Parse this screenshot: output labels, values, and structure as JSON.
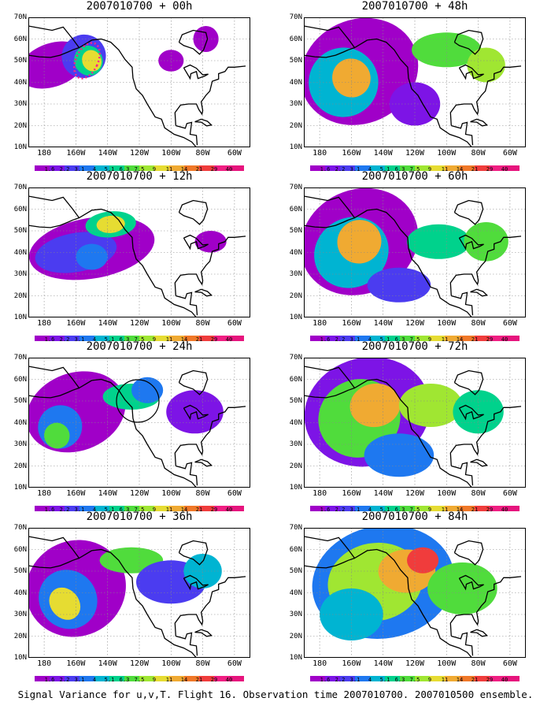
{
  "caption": "Signal Variance for u,v,T. Flight 16. Observation time 2007010700. 2007010500 ensemble.",
  "panels": [
    {
      "title": "2007010700 + 00h",
      "lead": 0,
      "intensity": 0.35
    },
    {
      "title": "2007010700 + 48h",
      "lead": 48,
      "intensity": 0.72
    },
    {
      "title": "2007010700 + 12h",
      "lead": 12,
      "intensity": 0.5
    },
    {
      "title": "2007010700 + 60h",
      "lead": 60,
      "intensity": 0.78
    },
    {
      "title": "2007010700 + 24h",
      "lead": 24,
      "intensity": 0.6
    },
    {
      "title": "2007010700 + 72h",
      "lead": 72,
      "intensity": 0.85
    },
    {
      "title": "2007010700 + 36h",
      "lead": 36,
      "intensity": 0.68
    },
    {
      "title": "2007010700 + 84h",
      "lead": 84,
      "intensity": 0.9
    }
  ],
  "lat_labels": [
    "70N",
    "60N",
    "50N",
    "40N",
    "30N",
    "20N",
    "10N"
  ],
  "lon_labels": [
    "180",
    "160W",
    "140W",
    "120W",
    "100W",
    "80W",
    "60W"
  ],
  "colorbar_labels": [
    "1.6",
    "2.2",
    "3.1",
    "4",
    "5.1",
    "6.3",
    "7.5",
    "9",
    "11",
    "14",
    "21",
    "29",
    "40"
  ],
  "colorbar_colors": [
    "#a000c8",
    "#7d14e6",
    "#4b3cf0",
    "#1e78f0",
    "#00b4d2",
    "#00d28c",
    "#50dc3c",
    "#a0e632",
    "#e6dc32",
    "#f0aa32",
    "#f07828",
    "#f03c3c",
    "#f01e82"
  ]
}
